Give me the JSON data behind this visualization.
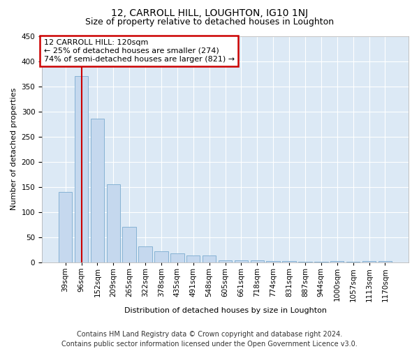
{
  "title": "12, CARROLL HILL, LOUGHTON, IG10 1NJ",
  "subtitle": "Size of property relative to detached houses in Loughton",
  "xlabel": "Distribution of detached houses by size in Loughton",
  "ylabel": "Number of detached properties",
  "bar_color": "#c5d8ee",
  "bar_edge_color": "#7aabcf",
  "bar_labels": [
    "39sqm",
    "96sqm",
    "152sqm",
    "209sqm",
    "265sqm",
    "322sqm",
    "378sqm",
    "435sqm",
    "491sqm",
    "548sqm",
    "605sqm",
    "661sqm",
    "718sqm",
    "774sqm",
    "831sqm",
    "887sqm",
    "944sqm",
    "1000sqm",
    "1057sqm",
    "1113sqm",
    "1170sqm"
  ],
  "bar_values": [
    140,
    370,
    285,
    155,
    70,
    32,
    22,
    18,
    14,
    14,
    4,
    4,
    4,
    3,
    3,
    1,
    1,
    3,
    1,
    3,
    3
  ],
  "ylim": [
    0,
    450
  ],
  "yticks": [
    0,
    50,
    100,
    150,
    200,
    250,
    300,
    350,
    400,
    450
  ],
  "property_line_x": 1.0,
  "annotation_text": "12 CARROLL HILL: 120sqm\n← 25% of detached houses are smaller (274)\n74% of semi-detached houses are larger (821) →",
  "annotation_box_facecolor": "#ffffff",
  "annotation_box_edgecolor": "#cc0000",
  "footer_line1": "Contains HM Land Registry data © Crown copyright and database right 2024.",
  "footer_line2": "Contains public sector information licensed under the Open Government Licence v3.0.",
  "fig_background": "#ffffff",
  "plot_background": "#dce9f5",
  "grid_color": "#ffffff",
  "title_fontsize": 10,
  "subtitle_fontsize": 9,
  "axis_label_fontsize": 8,
  "tick_fontsize": 7.5,
  "annotation_fontsize": 8,
  "footer_fontsize": 7
}
